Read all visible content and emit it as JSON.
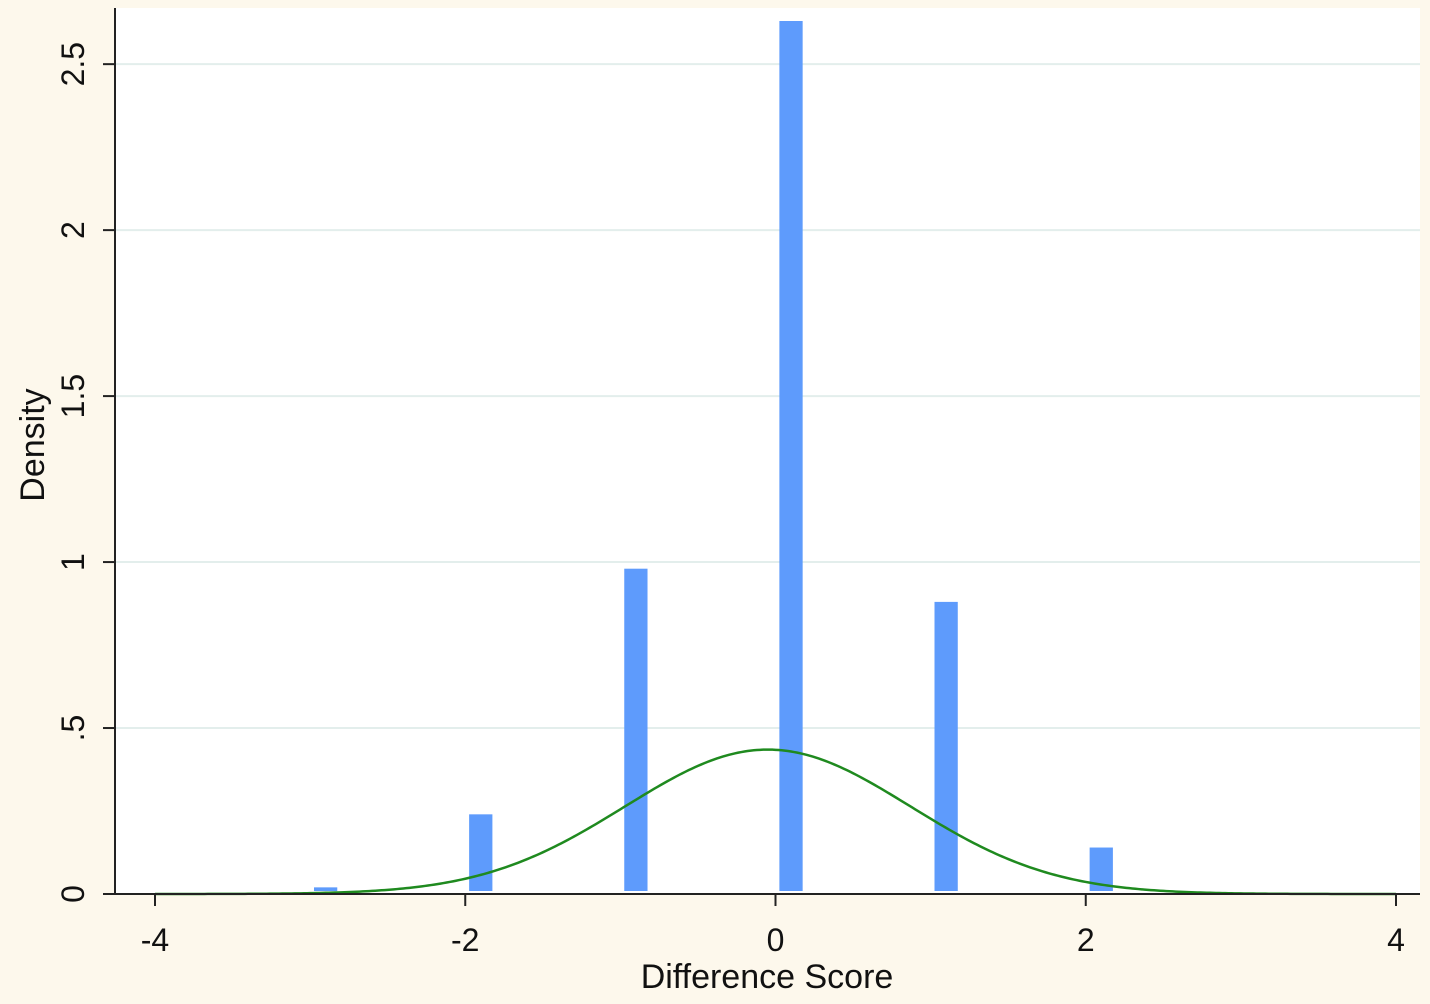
{
  "chart_data": {
    "type": "bar",
    "title": "",
    "xlabel": "Difference Score",
    "ylabel": "Density",
    "xlim": [
      -4,
      4
    ],
    "ylim": [
      0,
      2.63
    ],
    "x_ticks": [
      {
        "value": -4,
        "label": "-4"
      },
      {
        "value": -2,
        "label": "-2"
      },
      {
        "value": 0,
        "label": "0"
      },
      {
        "value": 2,
        "label": "2"
      },
      {
        "value": 4,
        "label": "4"
      }
    ],
    "y_ticks": [
      {
        "value": 0,
        "label": "0"
      },
      {
        "value": 0.5,
        "label": ".5"
      },
      {
        "value": 1,
        "label": "1"
      },
      {
        "value": 1.5,
        "label": "1.5"
      },
      {
        "value": 2,
        "label": "2"
      },
      {
        "value": 2.5,
        "label": "2.5"
      }
    ],
    "grid": true,
    "histogram": {
      "bar_width": 0.15,
      "bins": [
        {
          "x": -2.9,
          "density": 0.02
        },
        {
          "x": -1.9,
          "density": 0.24
        },
        {
          "x": -0.9,
          "density": 0.98
        },
        {
          "x": 0.1,
          "density": 2.63
        },
        {
          "x": 1.1,
          "density": 0.88
        },
        {
          "x": 2.1,
          "density": 0.14
        }
      ]
    },
    "normal_curve": {
      "mean": -0.05,
      "sd": 0.92,
      "peak_density": 0.435
    },
    "colors": {
      "bars": "#5e9bfc",
      "curve": "#1f8a1f",
      "grid": "#e3eeec",
      "axis": "#222222",
      "background": "#fdf8ec",
      "plot_background": "#ffffff"
    }
  }
}
